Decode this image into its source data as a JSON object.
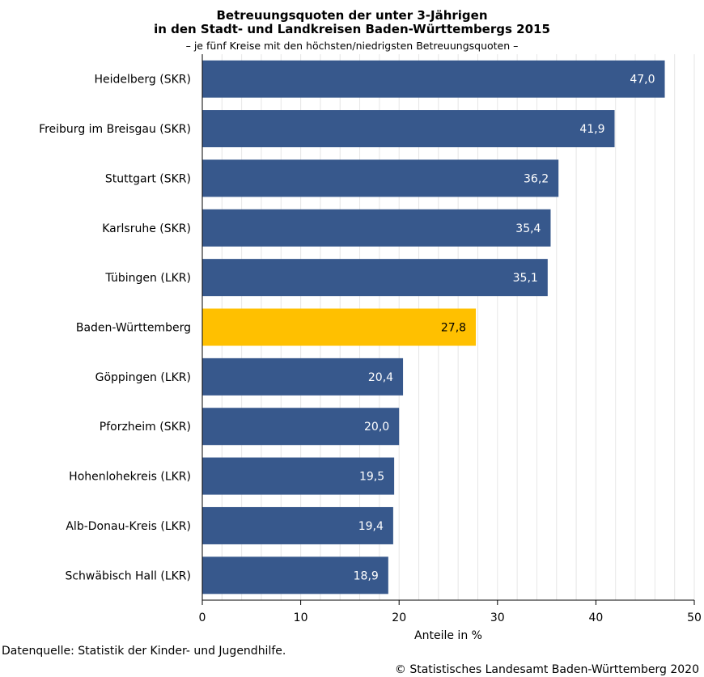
{
  "header": {
    "title_line1": "Betreuungsquoten der unter 3-Jährigen",
    "title_line2": "in den Stadt- und Landkreisen Baden-Württembergs 2015",
    "subtitle": "– je fünf Kreise mit den höchsten/niedrigsten Betreuungsquoten –"
  },
  "chart_data": {
    "type": "bar",
    "orientation": "horizontal",
    "categories": [
      "Heidelberg (SKR)",
      "Freiburg im Breisgau (SKR)",
      "Stuttgart (SKR)",
      "Karlsruhe (SKR)",
      "Tübingen (LKR)",
      "Baden-Württemberg",
      "Göppingen (LKR)",
      "Pforzheim (SKR)",
      "Hohenlohekreis (LKR)",
      "Alb-Donau-Kreis (LKR)",
      "Schwäbisch Hall (LKR)"
    ],
    "values": [
      47.0,
      41.9,
      36.2,
      35.4,
      35.1,
      27.8,
      20.4,
      20.0,
      19.5,
      19.4,
      18.9
    ],
    "value_labels": [
      "47,0",
      "41,9",
      "36,2",
      "35,4",
      "35,1",
      "27,8",
      "20,4",
      "20,0",
      "19,5",
      "19,4",
      "18,9"
    ],
    "highlight_index": 5,
    "xlabel": "Anteile in %",
    "xlim": [
      0,
      50
    ],
    "xticks": [
      0,
      10,
      20,
      30,
      40,
      50
    ],
    "grid": true,
    "colors": {
      "bar": "#37588c",
      "highlight": "#ffc000",
      "grid": "#e6e6e6"
    }
  },
  "footer": {
    "source": "Datenquelle: Statistik der Kinder- und Jugendhilfe.",
    "copyright": "© Statistisches Landesamt Baden-Württemberg 2020"
  }
}
